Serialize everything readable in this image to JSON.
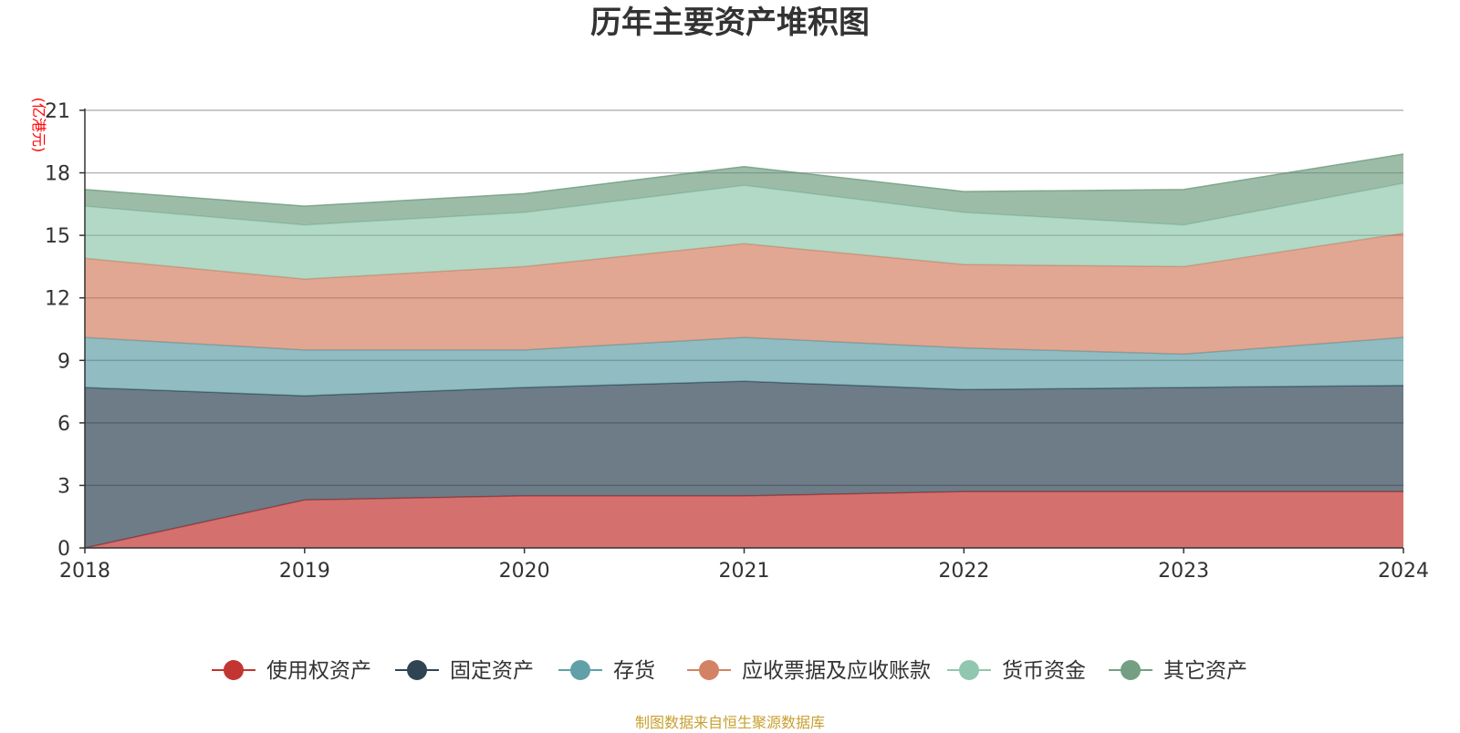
{
  "chart_data": {
    "type": "area",
    "stacked": true,
    "title": "历年主要资产堆积图",
    "ylabel": "(亿港元)",
    "xlabel": "",
    "categories": [
      "2018",
      "2019",
      "2020",
      "2021",
      "2022",
      "2023",
      "2024"
    ],
    "yticks": [
      "0",
      "3",
      "6",
      "9",
      "12",
      "15",
      "18",
      "21"
    ],
    "ylim": [
      0,
      21
    ],
    "grid": true,
    "legend_position": "bottom",
    "series": [
      {
        "name": "使用权资产",
        "color": "#c23531",
        "values": [
          0.0,
          2.3,
          2.5,
          2.5,
          2.7,
          2.7,
          2.7
        ]
      },
      {
        "name": "固定资产",
        "color": "#2f4554",
        "values": [
          7.7,
          5.0,
          5.2,
          5.5,
          4.9,
          5.0,
          5.1
        ]
      },
      {
        "name": "存货",
        "color": "#61a0a8",
        "values": [
          2.4,
          2.2,
          1.8,
          2.1,
          2.0,
          1.6,
          2.3
        ]
      },
      {
        "name": "应收票据及应收账款",
        "color": "#d48265",
        "values": [
          3.8,
          3.4,
          4.0,
          4.5,
          4.0,
          4.2,
          5.0
        ]
      },
      {
        "name": "货币资金",
        "color": "#91c7ae",
        "values": [
          2.5,
          2.6,
          2.6,
          2.8,
          2.5,
          2.0,
          2.4
        ]
      },
      {
        "name": "其它资产",
        "color": "#749f83",
        "values": [
          0.8,
          0.9,
          0.9,
          0.9,
          1.0,
          1.7,
          1.4
        ]
      }
    ],
    "source": "制图数据来自恒生聚源数据库"
  }
}
